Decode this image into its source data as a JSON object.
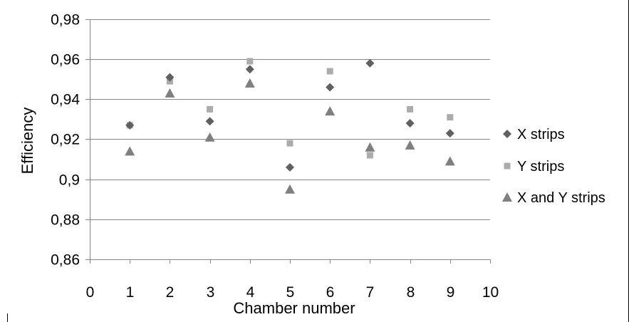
{
  "chart_data": {
    "type": "scatter",
    "title": "",
    "xlabel": "Chamber number",
    "ylabel": "Efficiency",
    "xlim": [
      0,
      10
    ],
    "ylim": [
      0.86,
      0.98
    ],
    "x_ticks": [
      0,
      1,
      2,
      3,
      4,
      5,
      6,
      7,
      8,
      9,
      10
    ],
    "x_tick_labels": [
      "0",
      "1",
      "2",
      "3",
      "4",
      "5",
      "6",
      "7",
      "8",
      "9",
      "10"
    ],
    "y_ticks": [
      0.86,
      0.88,
      0.9,
      0.92,
      0.94,
      0.96,
      0.98
    ],
    "y_tick_labels": [
      "0,86",
      "0,88",
      "0,9",
      "0,92",
      "0,94",
      "0,96",
      "0,98"
    ],
    "grid": "horizontal",
    "legend_position": "right",
    "series": [
      {
        "name": "X strips",
        "marker": "diamond",
        "color": "#606060",
        "x": [
          1,
          2,
          3,
          4,
          5,
          6,
          7,
          8,
          9
        ],
        "y": [
          0.927,
          0.951,
          0.929,
          0.955,
          0.906,
          0.946,
          0.958,
          0.928,
          0.923
        ]
      },
      {
        "name": "Y strips",
        "marker": "square",
        "color": "#ababab",
        "x": [
          1,
          2,
          3,
          4,
          5,
          6,
          7,
          8,
          9
        ],
        "y": [
          0.927,
          0.949,
          0.935,
          0.959,
          0.918,
          0.954,
          0.912,
          0.935,
          0.931
        ]
      },
      {
        "name": "X and Y strips",
        "marker": "triangle",
        "color": "#7f7f7f",
        "x": [
          1,
          2,
          3,
          4,
          5,
          6,
          7,
          8,
          9
        ],
        "y": [
          0.914,
          0.943,
          0.921,
          0.948,
          0.895,
          0.934,
          0.916,
          0.917,
          0.909
        ]
      }
    ]
  }
}
